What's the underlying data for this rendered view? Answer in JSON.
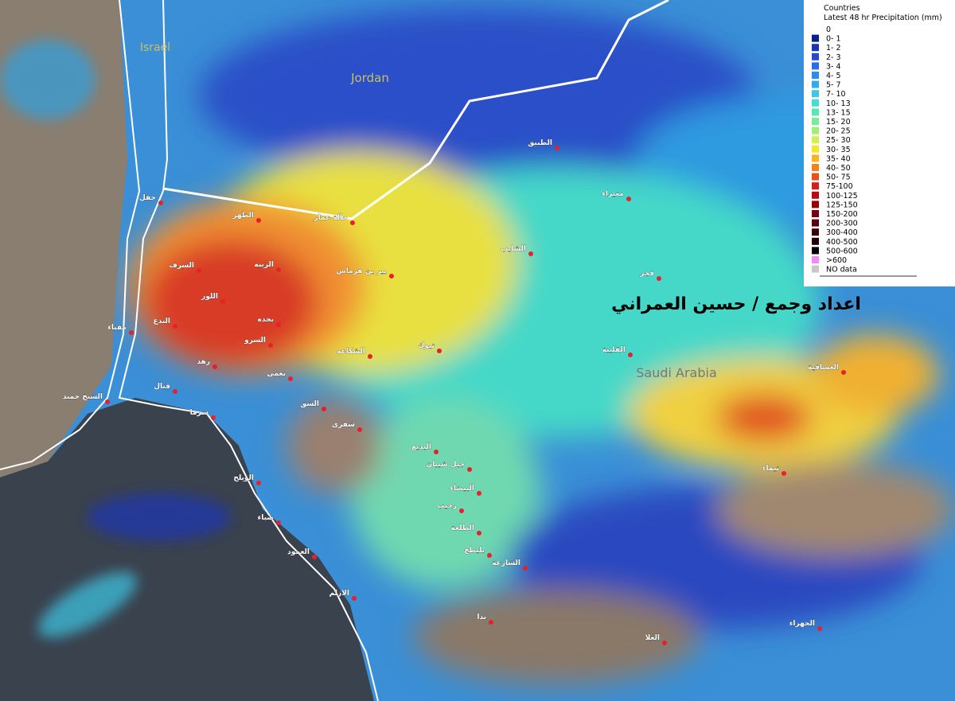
{
  "legend": {
    "layer": "Countries",
    "title": "Latest 48 hr Precipitation (mm)",
    "items": [
      {
        "label": "0",
        "color": "#ffffff"
      },
      {
        "label": "0- 1",
        "color": "#0a1e8c"
      },
      {
        "label": "1- 2",
        "color": "#1a34b4"
      },
      {
        "label": "2- 3",
        "color": "#2648d2"
      },
      {
        "label": "3- 4",
        "color": "#2a6ee6"
      },
      {
        "label": "4- 5",
        "color": "#2e8cf0"
      },
      {
        "label": "5- 7",
        "color": "#30aaf0"
      },
      {
        "label": "7- 10",
        "color": "#3cc8e6"
      },
      {
        "label": "10- 13",
        "color": "#46dcd2"
      },
      {
        "label": "13- 15",
        "color": "#5ae6b4"
      },
      {
        "label": "15- 20",
        "color": "#78ec96"
      },
      {
        "label": "20- 25",
        "color": "#a0f078"
      },
      {
        "label": "25- 30",
        "color": "#d2f050"
      },
      {
        "label": "30- 35",
        "color": "#f5e628"
      },
      {
        "label": "35- 40",
        "color": "#fab41e"
      },
      {
        "label": "40- 50",
        "color": "#f5821e"
      },
      {
        "label": "50- 75",
        "color": "#e6501e"
      },
      {
        "label": "75-100",
        "color": "#d21e1e"
      },
      {
        "label": "100-125",
        "color": "#b40a14"
      },
      {
        "label": "125-150",
        "color": "#96000a"
      },
      {
        "label": "150-200",
        "color": "#780010"
      },
      {
        "label": "200-300",
        "color": "#5a0014"
      },
      {
        "label": "300-400",
        "color": "#3c000a"
      },
      {
        "label": "400-500",
        "color": "#1e0005"
      },
      {
        "label": "500-600",
        "color": "#000000"
      },
      {
        "label": ">600",
        "color": "#f08cf0"
      },
      {
        "label": "NO data",
        "color": "#c8c8c8"
      }
    ]
  },
  "countries": [
    "Israel",
    "Jordan",
    "Saudi Arabia"
  ],
  "credit": "اعداد وجمع / حسين العمراني",
  "cities": [
    "حقل",
    "الظهر",
    "حالة عمار",
    "الطبيق",
    "مغيراء",
    "الشايب",
    "بير بن هرماس",
    "فجر",
    "الشرف",
    "الزيته",
    "اللوز",
    "البدع",
    "بجده",
    "مقناء",
    "السرو",
    "الشكاعه",
    "تبوك",
    "القليبة",
    "العسافية",
    "زهد",
    "نعمى",
    "قيال",
    "الشيخ حميد",
    "شرما",
    "الشق",
    "شقري",
    "البديع",
    "جبل شيبان",
    "البيضاء",
    "رحيب",
    "الطلعة",
    "بليطح",
    "الشارعة",
    "تيماء",
    "الويلح",
    "ضباء",
    "العمود",
    "الازلم",
    "بدا",
    "العلا",
    "الجهراء"
  ]
}
